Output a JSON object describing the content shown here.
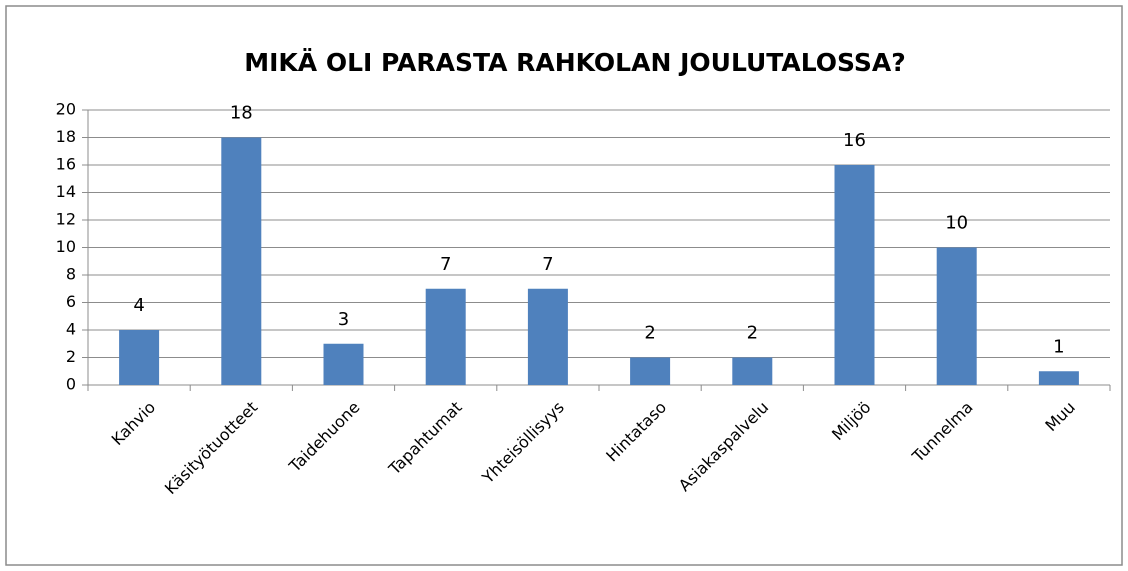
{
  "chart_data": {
    "type": "bar",
    "title": "MIKÄ OLI PARASTA RAHKOLAN JOULUTALOSSA?",
    "categories": [
      "Kahvio",
      "Käsityötuotteet",
      "Taidehuone",
      "Tapahtumat",
      "Yhteisöllisyys",
      "Hintataso",
      "Asiakaspalvelu",
      "Miljöö",
      "Tunnelma",
      "Muu"
    ],
    "values": [
      4,
      18,
      3,
      7,
      7,
      2,
      2,
      16,
      10,
      1
    ],
    "color": "#4f81bd",
    "ylim": [
      0,
      20
    ],
    "yticks": [
      0,
      2,
      4,
      6,
      8,
      10,
      12,
      14,
      16,
      18,
      20
    ],
    "grid": true
  }
}
